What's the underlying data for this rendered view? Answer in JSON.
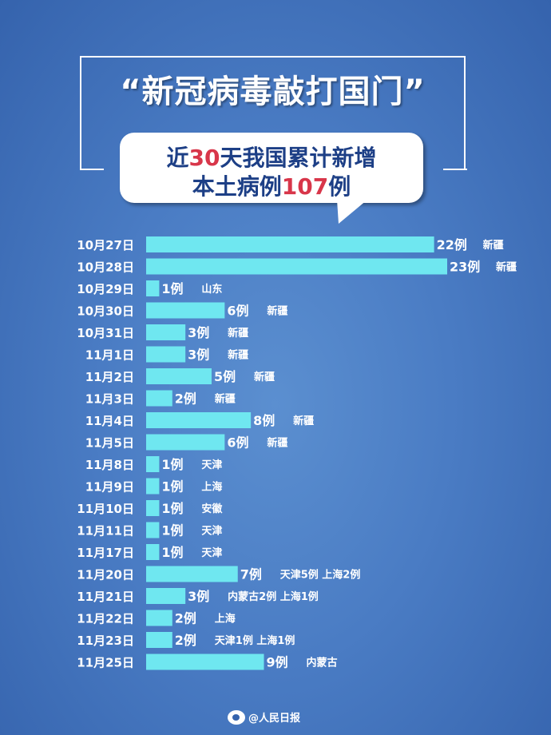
{
  "header": {
    "title": "“新冠病毒敲打国门”",
    "line1_pre": "近",
    "line1_highlight": "30",
    "line1_post": "天我国累计新增",
    "line2_pre": "本土病例",
    "line2_highlight": "107",
    "line2_post": "例"
  },
  "watermark": {
    "text": "@人民日报"
  },
  "colors": {
    "bar": "#6fe7f0",
    "highlight": "#d8364a",
    "background": "#4a7cc4"
  },
  "chart_data": {
    "type": "bar",
    "orientation": "horizontal",
    "categories": [
      "10月27日",
      "10月28日",
      "10月29日",
      "10月30日",
      "10月31日",
      "11月1日",
      "11月2日",
      "11月3日",
      "11月4日",
      "11月5日",
      "11月8日",
      "11月9日",
      "11月10日",
      "11月11日",
      "11月17日",
      "11月20日",
      "11月21日",
      "11月22日",
      "11月23日",
      "11月25日"
    ],
    "values": [
      22,
      23,
      1,
      6,
      3,
      3,
      5,
      2,
      8,
      6,
      1,
      1,
      1,
      1,
      1,
      7,
      3,
      2,
      2,
      9
    ],
    "value_labels": [
      "22例",
      "23例",
      "1例",
      "6例",
      "3例",
      "3例",
      "5例",
      "2例",
      "8例",
      "6例",
      "1例",
      "1例",
      "1例",
      "1例",
      "1例",
      "7例",
      "3例",
      "2例",
      "2例",
      "9例"
    ],
    "regions": [
      "新疆",
      "新疆",
      "山东",
      "新疆",
      "新疆",
      "新疆",
      "新疆",
      "新疆",
      "新疆",
      "新疆",
      "天津",
      "上海",
      "安徽",
      "天津",
      "天津",
      "天津5例  上海2例",
      "内蒙古2例  上海1例",
      "上海",
      "天津1例  上海1例",
      "内蒙古"
    ],
    "xlim": [
      0,
      23
    ],
    "title": "",
    "xlabel": "",
    "ylabel": ""
  }
}
